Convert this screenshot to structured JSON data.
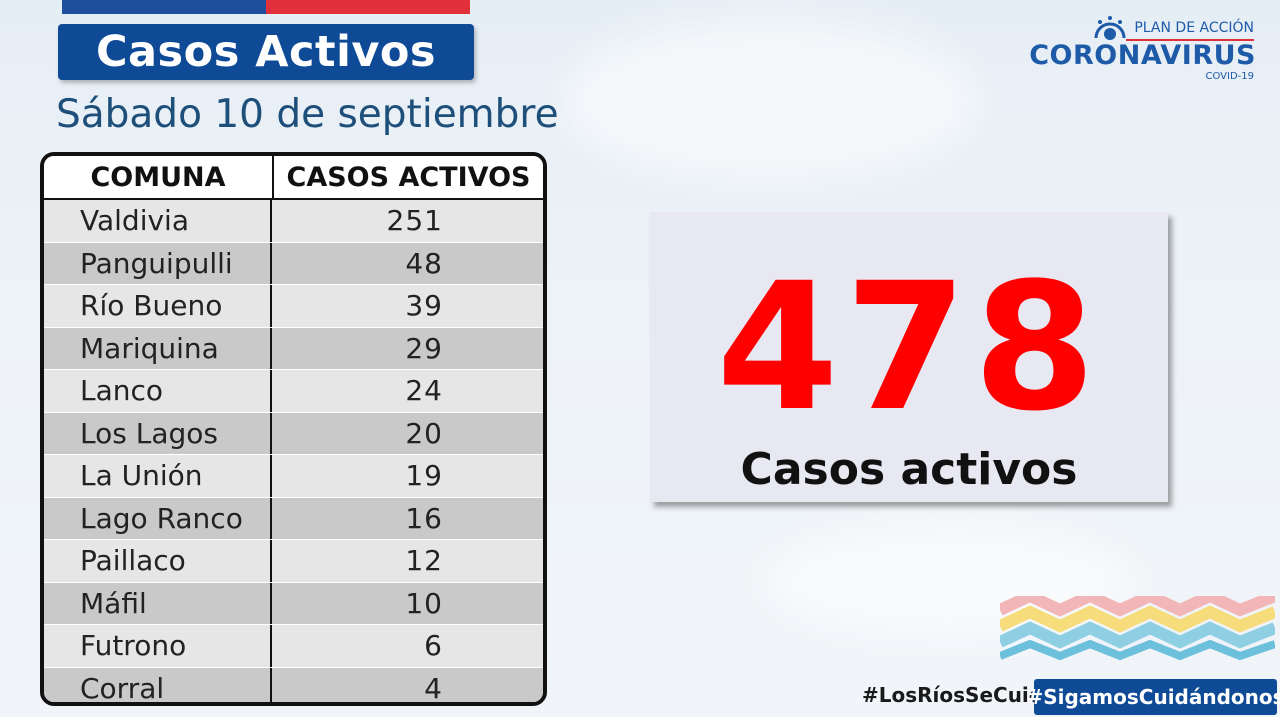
{
  "header": {
    "title": "Casos Activos",
    "date": "Sábado 10 de septiembre"
  },
  "logo": {
    "plan": "PLAN DE ACCIÓN",
    "main": "CORONAVIRUS",
    "sub": "COVID-19"
  },
  "table": {
    "col_comuna": "COMUNA",
    "col_casos": "CASOS ACTIVOS",
    "rows": [
      {
        "comuna": "Valdivia",
        "casos": "251"
      },
      {
        "comuna": "Panguipulli",
        "casos": "48"
      },
      {
        "comuna": "Río Bueno",
        "casos": "39"
      },
      {
        "comuna": "Mariquina",
        "casos": "29"
      },
      {
        "comuna": "Lanco",
        "casos": "24"
      },
      {
        "comuna": "Los Lagos",
        "casos": "20"
      },
      {
        "comuna": "La Unión",
        "casos": "19"
      },
      {
        "comuna": "Lago Ranco",
        "casos": "16"
      },
      {
        "comuna": "Paillaco",
        "casos": "12"
      },
      {
        "comuna": "Máfil",
        "casos": "10"
      },
      {
        "comuna": "Futrono",
        "casos": "6"
      },
      {
        "comuna": "Corral",
        "casos": "4"
      }
    ]
  },
  "total": {
    "value": "478",
    "label": "Casos activos"
  },
  "footer": {
    "hashtag_region": "#LosRíosSeCuida",
    "hashtag_campaign": "#SigamosCuidándonos"
  },
  "colors": {
    "brand_blue": "#0f4a96",
    "accent_red": "#e0303a",
    "total_red": "#ff0000"
  }
}
